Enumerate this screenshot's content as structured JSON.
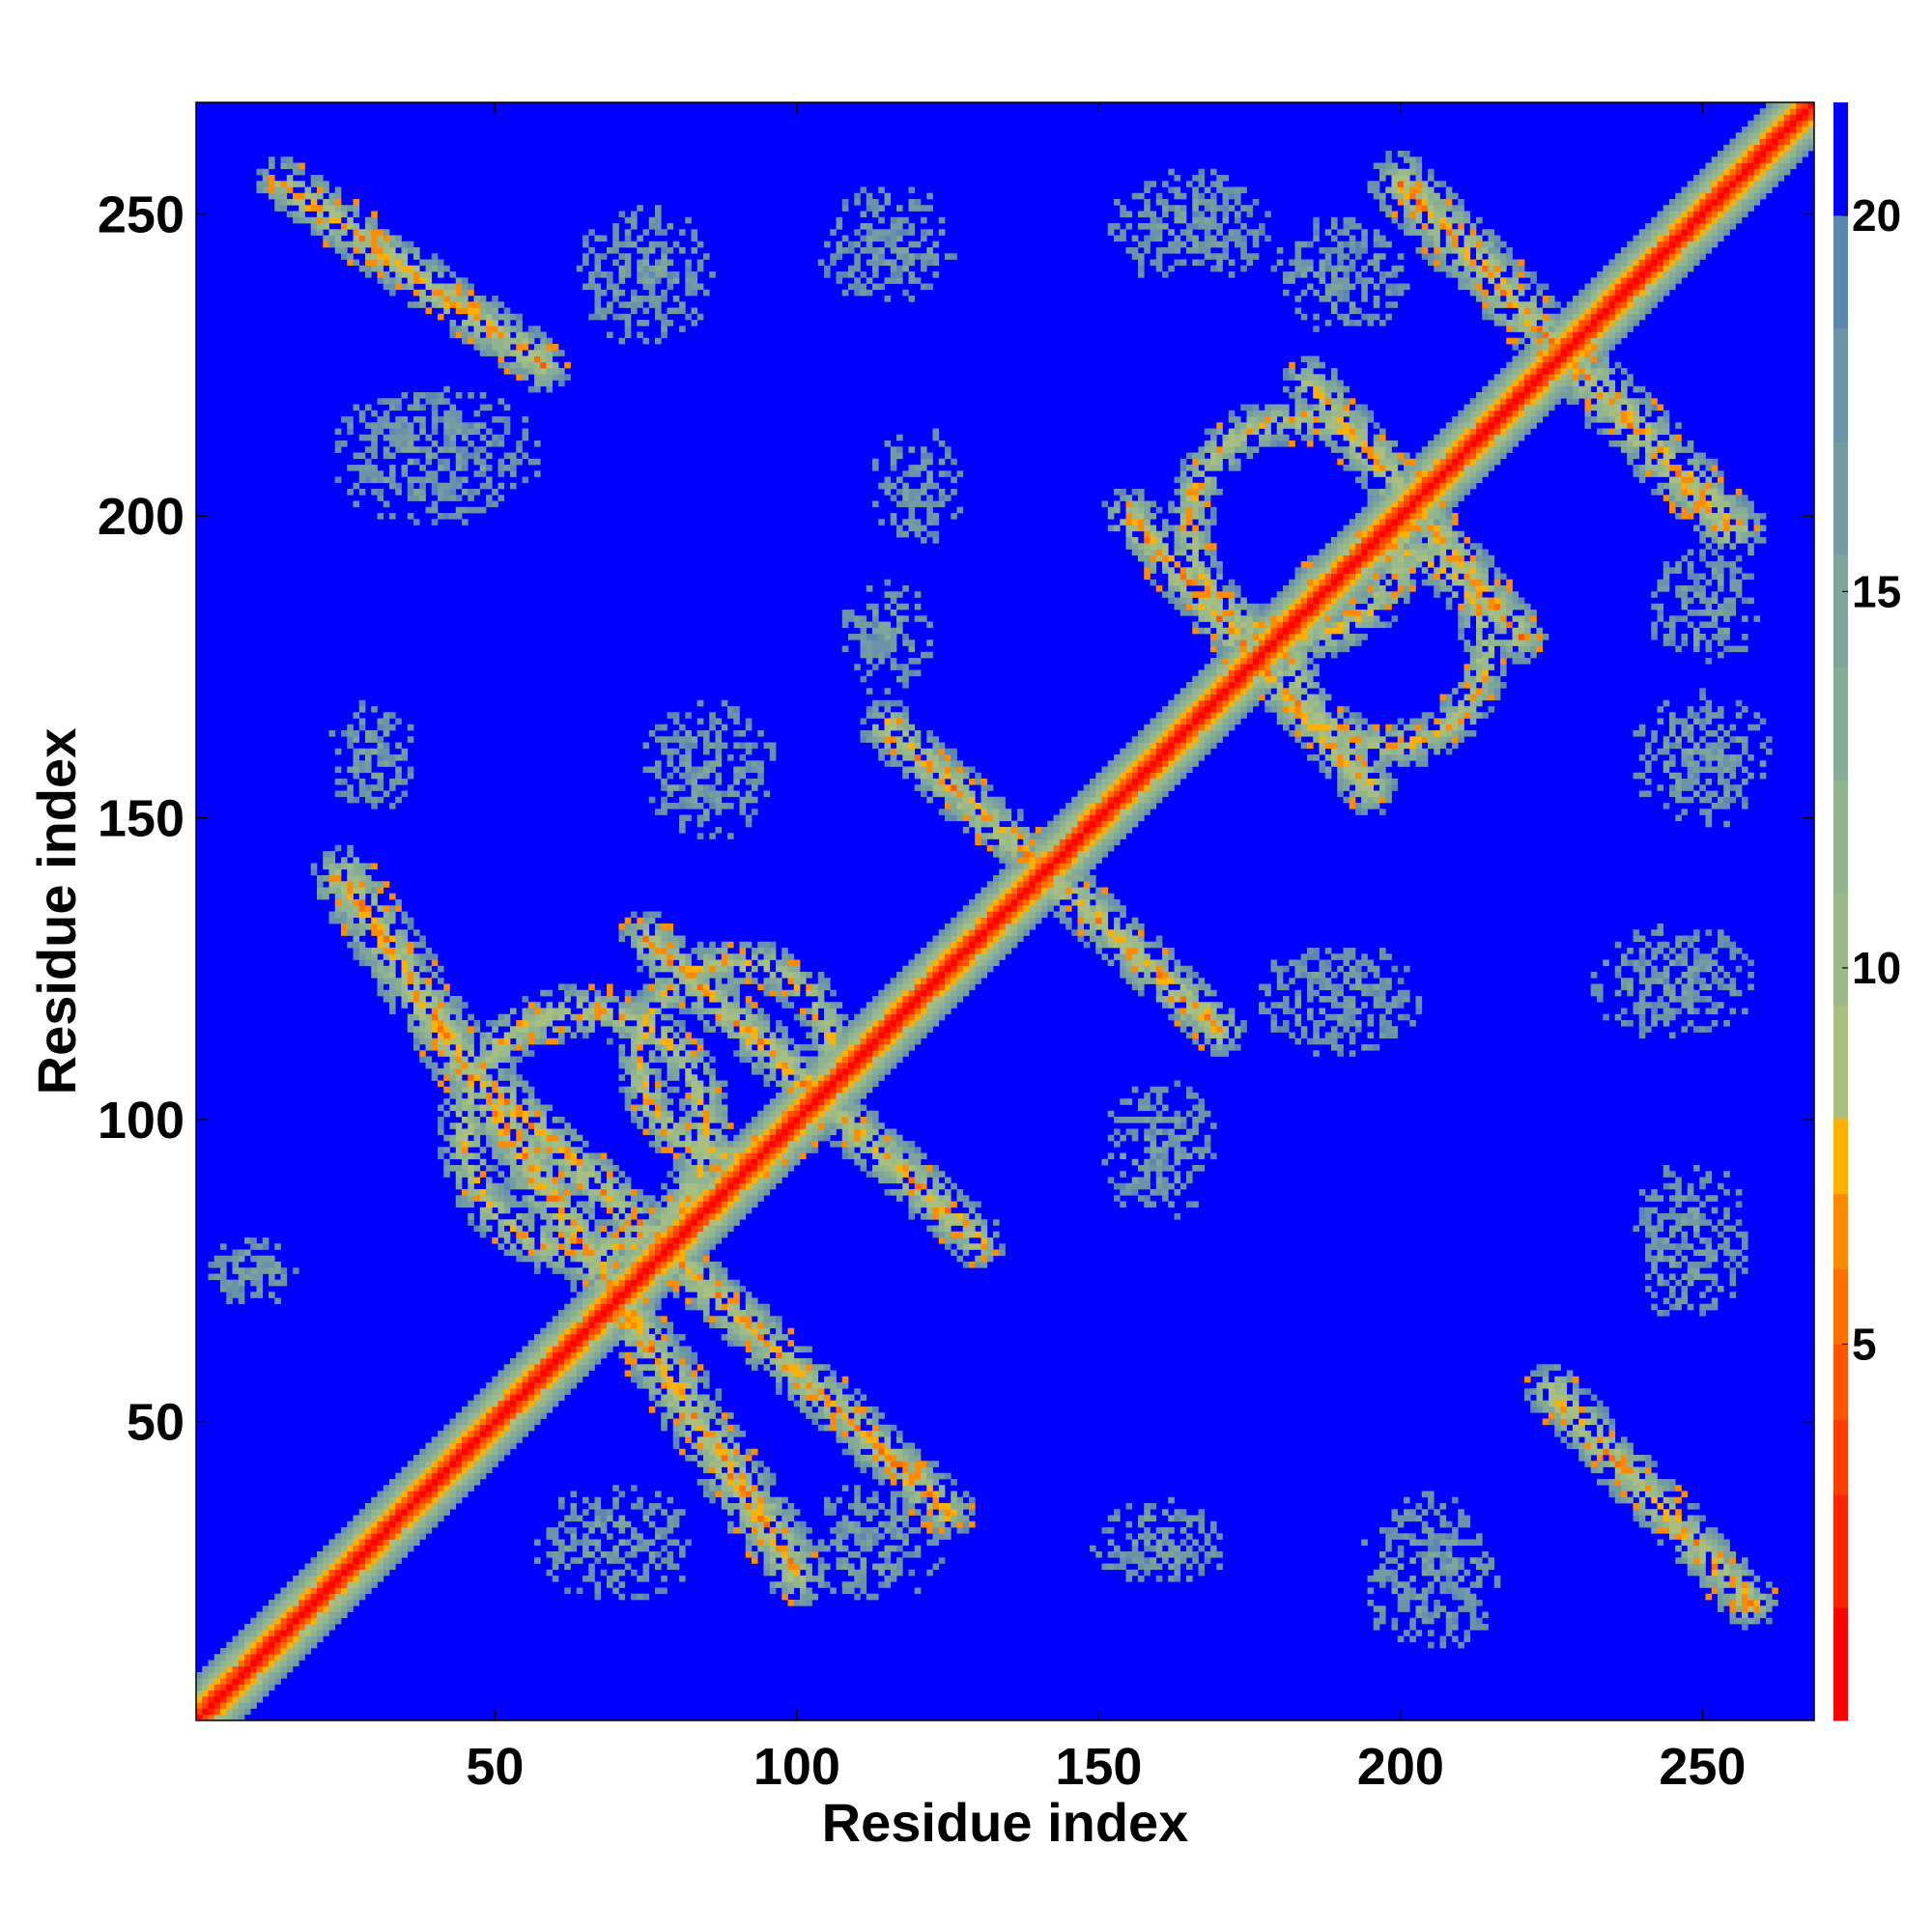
{
  "chart_data": {
    "type": "heatmap",
    "title": "",
    "xlabel": "Residue index",
    "ylabel": "Residue index",
    "xlim": [
      1,
      268
    ],
    "ylim": [
      1,
      268
    ],
    "x_ticks": [
      50,
      100,
      150,
      200,
      250
    ],
    "y_ticks": [
      50,
      100,
      150,
      200,
      250
    ],
    "colorbar": {
      "range": [
        0,
        21.5
      ],
      "ticks": [
        5,
        10,
        15,
        20
      ],
      "levels": [
        {
          "from": 0,
          "to": 1.5,
          "color": "#ff0000"
        },
        {
          "from": 1.5,
          "to": 3,
          "color": "#ff2200"
        },
        {
          "from": 3,
          "to": 4,
          "color": "#ff3c00"
        },
        {
          "from": 4,
          "to": 5,
          "color": "#ff5500"
        },
        {
          "from": 5,
          "to": 6,
          "color": "#ff6e00"
        },
        {
          "from": 6,
          "to": 7,
          "color": "#ff8c00"
        },
        {
          "from": 7,
          "to": 8,
          "color": "#ffb000"
        },
        {
          "from": 8,
          "to": 9.5,
          "color": "#a8bf80"
        },
        {
          "from": 9.5,
          "to": 11,
          "color": "#9cba88"
        },
        {
          "from": 11,
          "to": 12.5,
          "color": "#90b490"
        },
        {
          "from": 12.5,
          "to": 14,
          "color": "#86ac96"
        },
        {
          "from": 14,
          "to": 15.5,
          "color": "#7ea49c"
        },
        {
          "from": 15.5,
          "to": 17,
          "color": "#749ba2"
        },
        {
          "from": 17,
          "to": 18.5,
          "color": "#6a92a8"
        },
        {
          "from": 18.5,
          "to": 20,
          "color": "#5c87b0"
        },
        {
          "from": 20,
          "to": 21.5,
          "color": "#0000ff"
        }
      ]
    },
    "background_value": 21.5,
    "contact_bands": [
      {
        "x1": 25,
        "y1": 140,
        "x2": 100,
        "y2": 25,
        "width": 5.5
      },
      {
        "x1": 50,
        "y1": 105,
        "x2": 125,
        "y2": 35,
        "width": 4.5
      },
      {
        "x1": 75,
        "y1": 130,
        "x2": 130,
        "y2": 80,
        "width": 4.5
      },
      {
        "x1": 115,
        "y1": 165,
        "x2": 170,
        "y2": 115,
        "width": 4.5
      },
      {
        "x1": 155,
        "y1": 200,
        "x2": 195,
        "y2": 155,
        "width": 4.5
      },
      {
        "x1": 185,
        "y1": 222,
        "x2": 220,
        "y2": 180,
        "width": 4.5
      },
      {
        "x1": 200,
        "y1": 255,
        "x2": 255,
        "y2": 198,
        "width": 5.5
      },
      {
        "x1": 15,
        "y1": 255,
        "x2": 58,
        "y2": 225,
        "width": 4.5
      },
      {
        "x1": 225,
        "y1": 55,
        "x2": 258,
        "y2": 20,
        "width": 4.5
      }
    ],
    "contact_arcs": [
      {
        "cx": 65,
        "cy": 98,
        "r": 20,
        "width": 4.5
      },
      {
        "cx": 90,
        "cy": 110,
        "r": 16,
        "width": 4
      },
      {
        "cx": 183,
        "cy": 198,
        "r": 18,
        "width": 4
      },
      {
        "cx": 198,
        "cy": 178,
        "r": 16,
        "width": 4
      }
    ],
    "sparse_patches": [
      {
        "cx": 70,
        "cy": 30,
        "rx": 14,
        "ry": 10
      },
      {
        "cx": 113,
        "cy": 30,
        "rx": 12,
        "ry": 10
      },
      {
        "cx": 160,
        "cy": 30,
        "rx": 12,
        "ry": 8
      },
      {
        "cx": 205,
        "cy": 25,
        "rx": 12,
        "ry": 14
      },
      {
        "cx": 160,
        "cy": 95,
        "rx": 10,
        "ry": 12
      },
      {
        "cx": 248,
        "cy": 80,
        "rx": 10,
        "ry": 14
      },
      {
        "cx": 245,
        "cy": 123,
        "rx": 14,
        "ry": 10
      },
      {
        "cx": 190,
        "cy": 120,
        "rx": 14,
        "ry": 10
      },
      {
        "cx": 250,
        "cy": 160,
        "rx": 12,
        "ry": 12
      },
      {
        "cx": 250,
        "cy": 185,
        "rx": 10,
        "ry": 10
      },
      {
        "cx": 30,
        "cy": 160,
        "rx": 8,
        "ry": 10
      },
      {
        "cx": 85,
        "cy": 158,
        "rx": 12,
        "ry": 12
      },
      {
        "cx": 40,
        "cy": 210,
        "rx": 18,
        "ry": 12
      },
      {
        "cx": 75,
        "cy": 240,
        "rx": 12,
        "ry": 12
      },
      {
        "cx": 115,
        "cy": 245,
        "rx": 12,
        "ry": 10
      },
      {
        "cx": 165,
        "cy": 248,
        "rx": 14,
        "ry": 10
      },
      {
        "cx": 190,
        "cy": 240,
        "rx": 12,
        "ry": 10
      },
      {
        "cx": 120,
        "cy": 205,
        "rx": 8,
        "ry": 10
      },
      {
        "cx": 115,
        "cy": 180,
        "rx": 8,
        "ry": 10
      },
      {
        "cx": 10,
        "cy": 75,
        "rx": 8,
        "ry": 6
      }
    ]
  }
}
